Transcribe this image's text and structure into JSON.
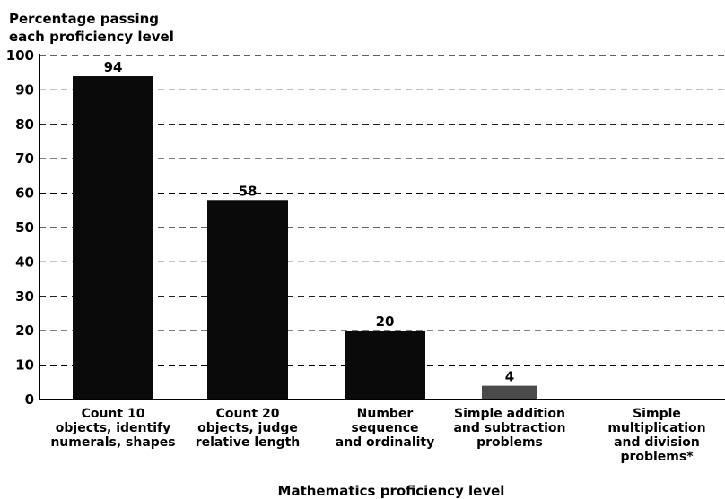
{
  "chart_data": {
    "type": "bar",
    "ylabel_lines": [
      "Percentage passing",
      "each proficiency level"
    ],
    "xlabel": "Mathematics proficiency level",
    "categories": [
      [
        "Count 10",
        "objects, identify",
        "numerals, shapes"
      ],
      [
        "Count 20",
        "objects,  judge",
        "relative length"
      ],
      [
        "Number",
        "sequence",
        "and ordinality"
      ],
      [
        "Simple addition",
        "and subtraction",
        "problems"
      ],
      [
        "Simple",
        "multiplication",
        "and division",
        "problems*"
      ]
    ],
    "values": [
      94,
      58,
      20,
      4,
      0
    ],
    "value_labels": [
      "94",
      "58",
      "20",
      "4",
      ""
    ],
    "ylim": [
      0,
      100
    ],
    "yticks": [
      "0",
      "10",
      "20",
      "30",
      "40",
      "50",
      "60",
      "70",
      "80",
      "90",
      "100"
    ],
    "grid": "dashed horizontal",
    "legend": "none",
    "colors": {
      "bar": "#0a0a0a",
      "bar_small": "#4a4a4a",
      "grid": "#000000",
      "text": "#000000"
    }
  }
}
